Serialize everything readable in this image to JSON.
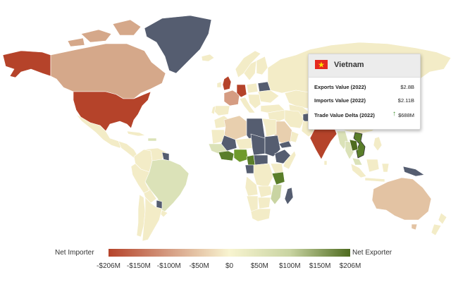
{
  "tooltip": {
    "country": "Vietnam",
    "flag_icon": "vietnam-flag-icon",
    "rows": [
      {
        "label": "Exports Value (2022)",
        "value": "$2.8B"
      },
      {
        "label": "Imports Value (2022)",
        "value": "$2.11B"
      },
      {
        "label": "Trade Value Delta (2022)",
        "value": "$688M",
        "trend_icon": "up-arrow-icon"
      }
    ]
  },
  "legend": {
    "left_label": "Net Importer",
    "right_label": "Net Exporter",
    "ticks": [
      "-$206M",
      "-$150M",
      "-$100M",
      "-$50M",
      "$0",
      "$50M",
      "$100M",
      "$150M",
      "$206M"
    ],
    "colors": [
      "#b5432a",
      "#d59c82",
      "#f8f4d0",
      "#c9d4a2",
      "#4e6b1f"
    ]
  },
  "colors": {
    "no_data": "#555d70",
    "ocean": "#ffffff",
    "border": "#ffffff"
  }
}
